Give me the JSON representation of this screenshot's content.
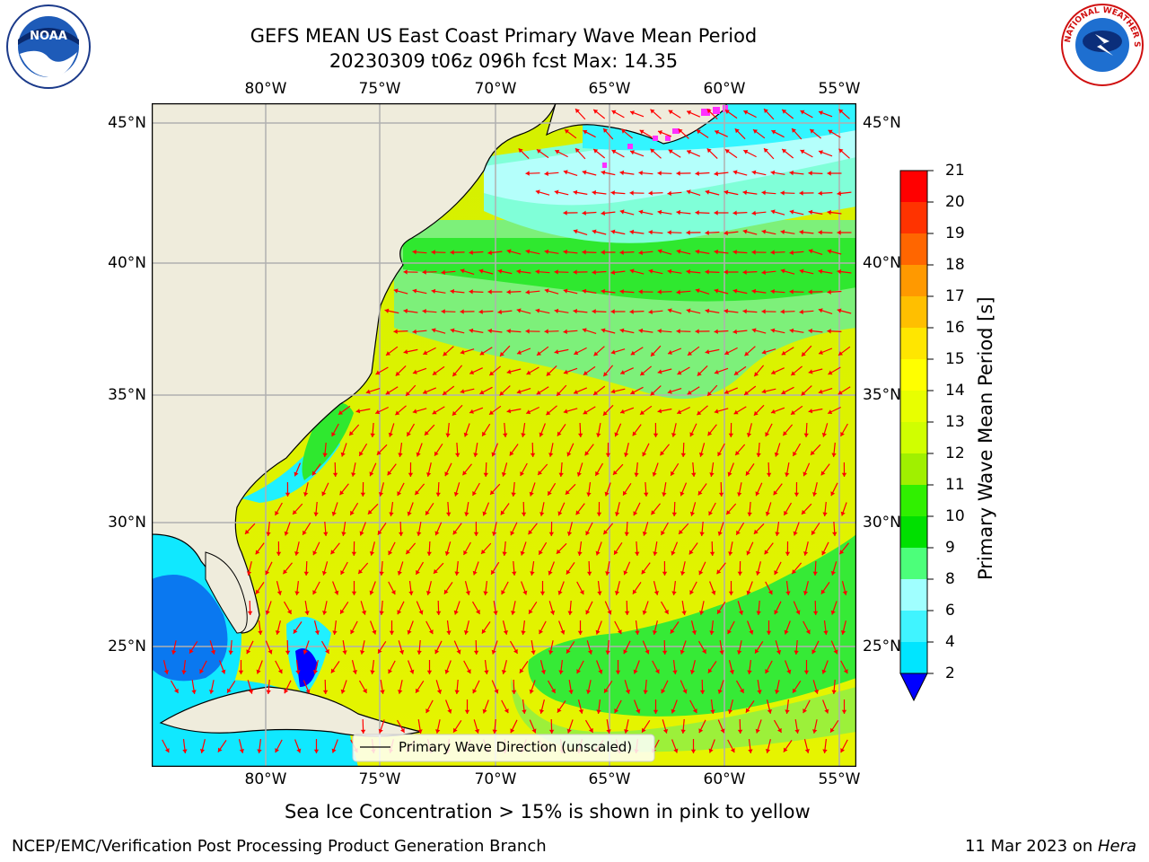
{
  "title": {
    "line1": "GEFS MEAN US East Coast Primary Wave Mean Period",
    "line2": "20230309 t06z 096h fcst   Max: 14.35"
  },
  "logos": {
    "left": {
      "name": "noaa-logo",
      "text": "NOAA"
    },
    "right": {
      "name": "nws-logo",
      "text": "NATIONAL WEATHER SERVICE"
    }
  },
  "map": {
    "lon_ticks": [
      "80°W",
      "75°W",
      "70°W",
      "65°W",
      "60°W",
      "55°W"
    ],
    "lat_ticks": [
      "45°N",
      "40°N",
      "35°N",
      "30°N",
      "25°N"
    ],
    "colors": {
      "land": "#efecdc",
      "arrows": "#ff0000",
      "grid": "#b0b0b0",
      "coast": "#000000"
    },
    "legend_text": "Primary Wave Direction (unscaled)"
  },
  "colorbar": {
    "label": "Primary Wave Mean Period [s]",
    "ticks": [
      "2",
      "4",
      "6",
      "8",
      "9",
      "10",
      "11",
      "12",
      "13",
      "14",
      "15",
      "16",
      "17",
      "18",
      "19",
      "20",
      "21"
    ],
    "colors": [
      "#0070ff",
      "#00e5ff",
      "#40f4ff",
      "#a0ffff",
      "#4cff7a",
      "#00e000",
      "#30f000",
      "#a0f000",
      "#d0ff00",
      "#e8ff00",
      "#ffff00",
      "#ffe600",
      "#ffbf00",
      "#ff9900",
      "#ff6600",
      "#ff3300",
      "#ff0000"
    ],
    "under_color": "#0000ff"
  },
  "note": "Sea Ice Concentration > 15% is shown in pink to yellow",
  "footer": {
    "left": "NCEP/EMC/Verification Post Processing Product Generation Branch",
    "right_date": "11 Mar 2023 on ",
    "right_host": "Hera"
  }
}
